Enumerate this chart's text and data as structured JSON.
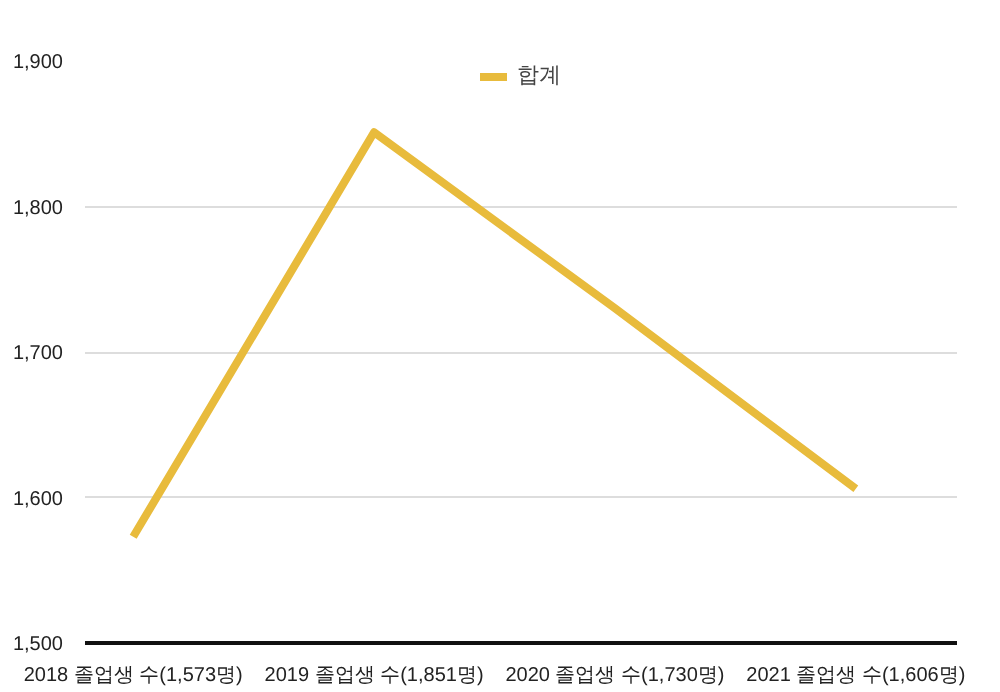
{
  "chart_data": {
    "type": "line",
    "categories": [
      "2018 졸업생 수(1,573명)",
      "2019 졸업생 수(1,851명)",
      "2020 졸업생 수(1,730명)",
      "2021 졸업생 수(1,606명)"
    ],
    "series": [
      {
        "name": "합계",
        "color": "#e8bb3c",
        "values": [
          1573,
          1851,
          1730,
          1606
        ]
      }
    ],
    "ylim": [
      1500,
      1900
    ],
    "yticks": [
      {
        "value": 1500,
        "label": "1,500"
      },
      {
        "value": 1600,
        "label": "1,600"
      },
      {
        "value": 1700,
        "label": "1,700"
      },
      {
        "value": 1800,
        "label": "1,800"
      },
      {
        "value": 1900,
        "label": "1,900"
      }
    ],
    "grid": "y",
    "legend": "top",
    "marker": "none",
    "line_style": "solid"
  }
}
